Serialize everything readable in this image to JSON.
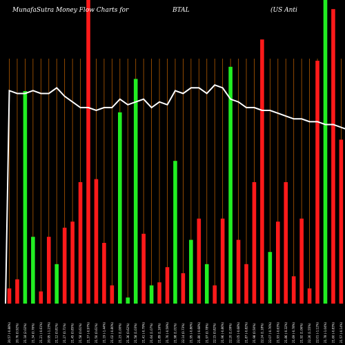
{
  "header": {
    "title_left": "MunafaSutra  Money Flow  Charts for",
    "symbol": "BTAL",
    "title_right": "(US Anti"
  },
  "colors": {
    "background": "#000000",
    "up": "#22ee22",
    "down": "#ff1a1a",
    "line": "#ffffff",
    "grid": "#b35a00"
  },
  "chart_data": {
    "type": "bar",
    "title": "MunafaSutra  Money Flow  Charts for BTAL (US Anti",
    "grid": true,
    "ylim": [
      0,
      100
    ],
    "categories": [
      "20.57 (-0.88%)",
      "20.76 (0.92%)",
      "21.18 (2.02%)",
      "21.34 (0.76%)",
      "21.21 (-0.61%)",
      "20.95 (-1.23%)",
      "21.12 (0.81%)",
      "21.27 (0.71%)",
      "21.45 (0.85%)",
      "21.58 (0.61%)",
      "21.37 (-0.97%)",
      "21.50 (0.61%)",
      "21.19 (-1.44%)",
      "21.02 (-0.80%)",
      "21.23 (1.00%)",
      "21.36 (0.62%)",
      "21.58 (1.03%)",
      "21.41 (-0.79%)",
      "21.64 (1.07%)",
      "21.89 (1.16%)",
      "21.76 (-0.59%)",
      "21.98 (1.01%)",
      "22.14 (0.73%)",
      "21.95 (-0.86%)",
      "21.80 (-0.68%)",
      "21.97 (0.78%)",
      "22.15 (0.82%)",
      "21.96 (-0.86%)",
      "22.20 (1.09%)",
      "22.05 (-0.68%)",
      "21.87 (-0.82%)",
      "21.98 (0.50%)",
      "22.24 (1.18%)",
      "22.07 (-0.76%)",
      "21.93 (-0.63%)",
      "21.86 (-0.32%)",
      "21.69 (-0.78%)",
      "21.92 (1.06%)",
      "22.26 (1.55%)",
      "22.01 (-1.12%)",
      "21.78 (-1.04%)",
      "21.60 (-0.83%)",
      "21.57 (-0.14%)",
      "21.36 (-0.97%)"
    ],
    "values": [
      5,
      8,
      70,
      22,
      4,
      22,
      13,
      25,
      27,
      40,
      100,
      41,
      20,
      6,
      63,
      2,
      74,
      23,
      6,
      7,
      12,
      47,
      10,
      21,
      28,
      13,
      6,
      28,
      78,
      21,
      13,
      40,
      87,
      17,
      27,
      40,
      9,
      28,
      5,
      80,
      100,
      97,
      54,
      25
    ],
    "directions": [
      "down",
      "down",
      "up",
      "up",
      "down",
      "down",
      "up",
      "down",
      "down",
      "down",
      "down",
      "down",
      "down",
      "down",
      "up",
      "up",
      "up",
      "down",
      "up",
      "down",
      "down",
      "up",
      "down",
      "up",
      "down",
      "up",
      "down",
      "down",
      "up",
      "down",
      "down",
      "down",
      "down",
      "up",
      "down",
      "down",
      "down",
      "down",
      "down",
      "down",
      "up",
      "down",
      "down",
      "down"
    ],
    "line_values": [
      78,
      77,
      77,
      78,
      77,
      77,
      79,
      76,
      74,
      72,
      72,
      71,
      72,
      72,
      75,
      73,
      74,
      75,
      72,
      74,
      73,
      78,
      77,
      79,
      79,
      77,
      80,
      79,
      75,
      74,
      72,
      72,
      71,
      71,
      70,
      69,
      68,
      68,
      67,
      67,
      66,
      66,
      65,
      64
    ]
  }
}
